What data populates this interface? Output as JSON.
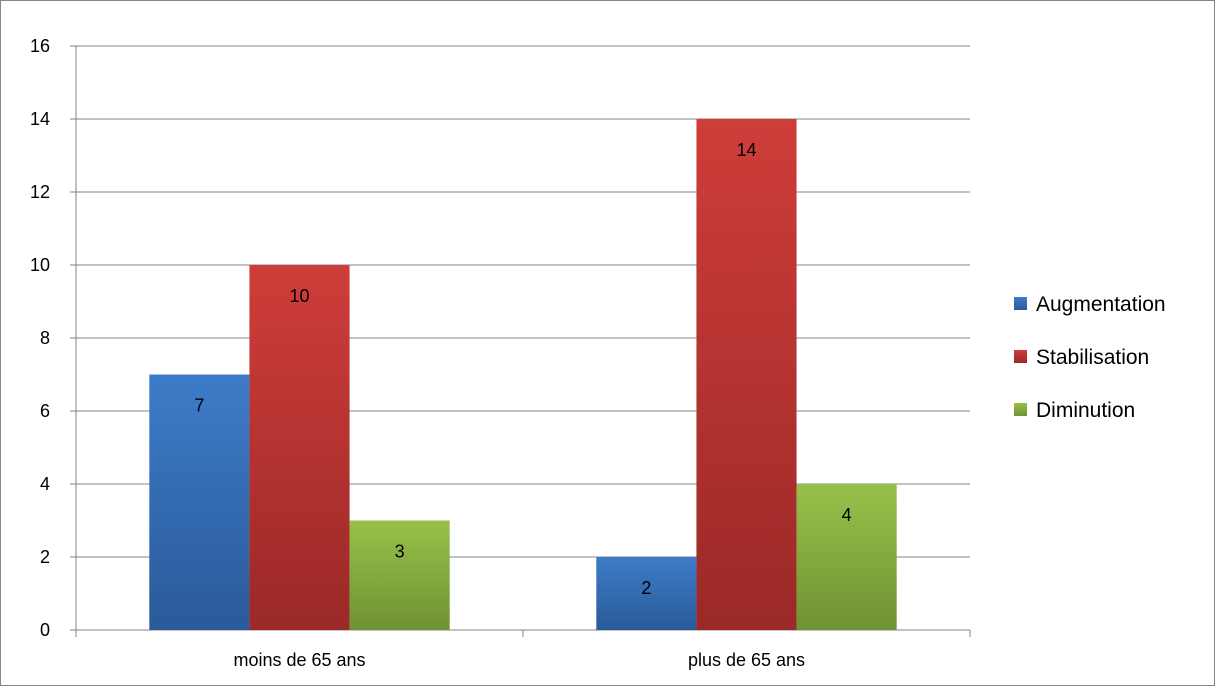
{
  "chart_data": {
    "type": "bar",
    "title": "",
    "xlabel": "",
    "ylabel": "",
    "categories": [
      "moins de 65 ans",
      "plus de 65 ans"
    ],
    "series": [
      {
        "name": "Augmentation",
        "values": [
          7,
          2
        ],
        "color": "#3d7cc9",
        "color_dark": "#2a5a99"
      },
      {
        "name": "Stabilisation",
        "values": [
          10,
          14
        ],
        "color": "#cf3d3a",
        "color_dark": "#9a2927"
      },
      {
        "name": "Diminution",
        "values": [
          3,
          4
        ],
        "color": "#97c14a",
        "color_dark": "#6f9233"
      }
    ],
    "ylim": [
      0,
      16
    ],
    "yticks": [
      0,
      2,
      4,
      6,
      8,
      10,
      12,
      14,
      16
    ],
    "grid": true,
    "legend": "right",
    "data_labels": true
  }
}
